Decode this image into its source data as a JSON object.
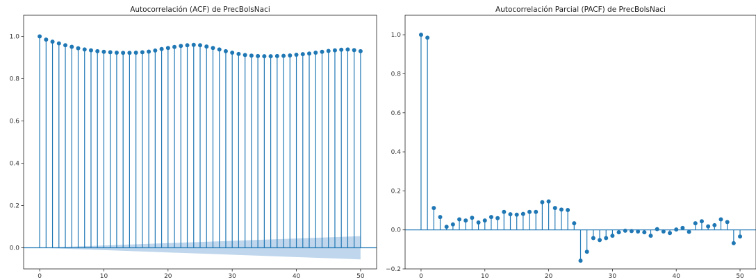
{
  "colors": {
    "stem": "#1f77b4",
    "confidence_band": "#aac8e6",
    "zero_line": "#1f77b4",
    "axis": "#222222"
  },
  "chart_data": [
    {
      "type": "stem",
      "title": "Autocorrelación (ACF) de PrecBolsNaci",
      "xlabel": "",
      "ylabel": "",
      "xlim": [
        -2.5,
        52.5
      ],
      "ylim": [
        -0.1,
        1.1
      ],
      "xticks": [
        0,
        10,
        20,
        30,
        40,
        50
      ],
      "xtick_labels": [
        "0",
        "10",
        "20",
        "30",
        "40",
        "50"
      ],
      "yticks": [
        0.0,
        0.2,
        0.4,
        0.6,
        0.8,
        1.0
      ],
      "ytick_labels": [
        "0.0",
        "0.2",
        "0.4",
        "0.6",
        "0.8",
        "1.0"
      ],
      "grid": false,
      "x": [
        0,
        1,
        2,
        3,
        4,
        5,
        6,
        7,
        8,
        9,
        10,
        11,
        12,
        13,
        14,
        15,
        16,
        17,
        18,
        19,
        20,
        21,
        22,
        23,
        24,
        25,
        26,
        27,
        28,
        29,
        30,
        31,
        32,
        33,
        34,
        35,
        36,
        37,
        38,
        39,
        40,
        41,
        42,
        43,
        44,
        45,
        46,
        47,
        48,
        49,
        50
      ],
      "values": [
        1.0,
        0.985,
        0.975,
        0.967,
        0.958,
        0.951,
        0.944,
        0.938,
        0.934,
        0.93,
        0.927,
        0.925,
        0.923,
        0.922,
        0.922,
        0.923,
        0.925,
        0.928,
        0.933,
        0.94,
        0.945,
        0.95,
        0.955,
        0.958,
        0.96,
        0.958,
        0.952,
        0.945,
        0.938,
        0.93,
        0.923,
        0.917,
        0.912,
        0.909,
        0.907,
        0.906,
        0.906,
        0.907,
        0.908,
        0.91,
        0.913,
        0.916,
        0.919,
        0.923,
        0.927,
        0.931,
        0.934,
        0.937,
        0.938,
        0.935,
        0.93
      ],
      "confidence_band": {
        "x": [
          0,
          50
        ],
        "upper": [
          0.0,
          0.055
        ],
        "lower": [
          0.0,
          -0.055
        ]
      }
    },
    {
      "type": "stem",
      "title": "Autocorrelación Parcial (PACF) de PrecBolsNaci",
      "xlabel": "",
      "ylabel": "",
      "xlim": [
        -2.5,
        52.5
      ],
      "ylim": [
        -0.2,
        1.1
      ],
      "xticks": [
        0,
        10,
        20,
        30,
        40,
        50
      ],
      "xtick_labels": [
        "0",
        "10",
        "20",
        "30",
        "40",
        "50"
      ],
      "yticks": [
        -0.2,
        0.0,
        0.2,
        0.4,
        0.6,
        0.8,
        1.0
      ],
      "ytick_labels": [
        "−0.2",
        "0.0",
        "0.2",
        "0.4",
        "0.6",
        "0.8",
        "1.0"
      ],
      "grid": false,
      "x": [
        0,
        1,
        2,
        3,
        4,
        5,
        6,
        7,
        8,
        9,
        10,
        11,
        12,
        13,
        14,
        15,
        16,
        17,
        18,
        19,
        20,
        21,
        22,
        23,
        24,
        25,
        26,
        27,
        28,
        29,
        30,
        31,
        32,
        33,
        34,
        35,
        36,
        37,
        38,
        39,
        40,
        41,
        42,
        43,
        44,
        45,
        46,
        47,
        48,
        49,
        50
      ],
      "values": [
        1.0,
        0.985,
        0.112,
        0.066,
        0.016,
        0.028,
        0.054,
        0.048,
        0.062,
        0.038,
        0.048,
        0.066,
        0.06,
        0.092,
        0.08,
        0.078,
        0.082,
        0.092,
        0.092,
        0.142,
        0.146,
        0.112,
        0.104,
        0.102,
        0.034,
        -0.158,
        -0.112,
        -0.042,
        -0.052,
        -0.042,
        -0.03,
        -0.012,
        -0.004,
        -0.006,
        -0.008,
        -0.012,
        -0.03,
        0.004,
        -0.008,
        -0.016,
        0.002,
        0.01,
        -0.01,
        0.034,
        0.044,
        0.018,
        0.024,
        0.054,
        0.04,
        -0.068,
        -0.034
      ]
    }
  ]
}
